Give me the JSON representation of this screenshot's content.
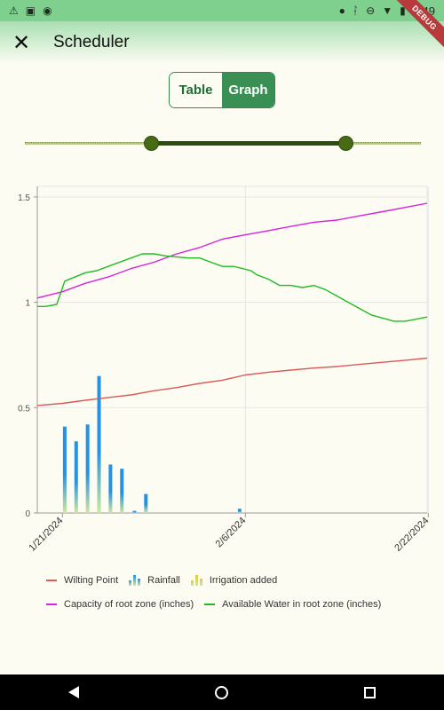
{
  "status_bar": {
    "time": "2:49",
    "left_icons": [
      "warning-icon",
      "image-icon",
      "android-icon"
    ],
    "right_icons": [
      "location-icon",
      "bluetooth-icon",
      "do-not-disturb-icon",
      "wifi-icon",
      "battery-icon"
    ]
  },
  "debug_banner": "DEBUG",
  "app_bar": {
    "close_icon": "close-icon",
    "title": "Scheduler"
  },
  "view_toggle": {
    "options": [
      "Table",
      "Graph"
    ],
    "selected": "Graph"
  },
  "range_slider": {
    "start_fraction": 0.32,
    "end_fraction": 0.81
  },
  "colors": {
    "wilting": "#d95a57",
    "capacity": "#d422e0",
    "available": "#22bb22",
    "rainfall": "#2291e6",
    "irrigation": "#e0c640",
    "accent": "#3a8f55"
  },
  "chart_data": {
    "type": "line",
    "x_tick_labels": [
      "1/21/2024",
      "2/6/2024",
      "2/22/2024"
    ],
    "x_tick_days": [
      0,
      16,
      32
    ],
    "x_range_days": [
      -2.2,
      31.9
    ],
    "ylim": [
      0,
      1.55
    ],
    "y_ticks": [
      0,
      0.5,
      1,
      1.5
    ],
    "y_tick_labels": [
      "0",
      "0.5",
      "1",
      "1.5"
    ],
    "grid": true,
    "legend_position": "bottom",
    "series": [
      {
        "name": "Wilting Point",
        "key": "wilting",
        "type": "line",
        "x": [
          -2.2,
          0,
          2,
          4,
          6,
          8,
          10,
          12,
          14,
          16,
          18,
          20,
          22,
          24,
          26,
          28,
          30,
          31.9
        ],
        "values": [
          0.51,
          0.52,
          0.535,
          0.548,
          0.56,
          0.58,
          0.595,
          0.615,
          0.63,
          0.655,
          0.668,
          0.678,
          0.688,
          0.695,
          0.705,
          0.715,
          0.725,
          0.735
        ]
      },
      {
        "name": "Capacity of root zone (inches)",
        "key": "capacity",
        "type": "line",
        "x": [
          -2.2,
          0,
          2,
          4,
          6,
          8,
          10,
          12,
          14,
          16,
          18,
          20,
          22,
          24,
          26,
          28,
          30,
          31.9
        ],
        "values": [
          1.02,
          1.05,
          1.09,
          1.12,
          1.16,
          1.19,
          1.23,
          1.26,
          1.3,
          1.32,
          1.34,
          1.36,
          1.38,
          1.39,
          1.41,
          1.43,
          1.45,
          1.47
        ]
      },
      {
        "name": "Available Water in root zone (inches)",
        "key": "available",
        "type": "line",
        "x": [
          -2.2,
          -1.5,
          -0.5,
          0.2,
          2,
          3,
          4,
          6,
          7,
          8,
          9,
          11,
          12,
          13,
          14,
          15,
          16.5,
          17,
          18,
          19,
          20,
          21,
          22,
          23,
          25,
          27,
          29,
          30,
          31.9
        ],
        "values": [
          0.98,
          0.98,
          0.99,
          1.1,
          1.14,
          1.15,
          1.17,
          1.21,
          1.23,
          1.23,
          1.22,
          1.21,
          1.21,
          1.19,
          1.17,
          1.17,
          1.15,
          1.13,
          1.11,
          1.08,
          1.08,
          1.07,
          1.08,
          1.06,
          1.0,
          0.94,
          0.91,
          0.91,
          0.93
        ]
      },
      {
        "name": "Rainfall",
        "key": "rainfall",
        "type": "bar",
        "x": [
          0.2,
          1.2,
          2.2,
          3.2,
          4.2,
          5.2,
          6.3,
          7.3,
          15.5
        ],
        "values": [
          0.41,
          0.34,
          0.42,
          0.65,
          0.23,
          0.21,
          0.01,
          0.09,
          0.02
        ]
      },
      {
        "name": "Irrigation added",
        "key": "irrigation",
        "type": "bar",
        "x": [],
        "values": []
      }
    ]
  },
  "legend": {
    "rows": [
      [
        {
          "key": "wilting",
          "label": "Wilting Point",
          "style": "line"
        },
        {
          "key": "rainfall",
          "label": "Rainfall",
          "style": "bars"
        },
        {
          "key": "irrigation",
          "label": "Irrigation added",
          "style": "bars"
        }
      ],
      [
        {
          "key": "capacity",
          "label": "Capacity of root zone (inches)",
          "style": "line"
        },
        {
          "key": "available",
          "label": "Available Water in root zone (inches)",
          "style": "line"
        }
      ]
    ]
  },
  "nav_bar": {
    "icons": [
      "back-icon",
      "home-icon",
      "recent-apps-icon"
    ]
  }
}
